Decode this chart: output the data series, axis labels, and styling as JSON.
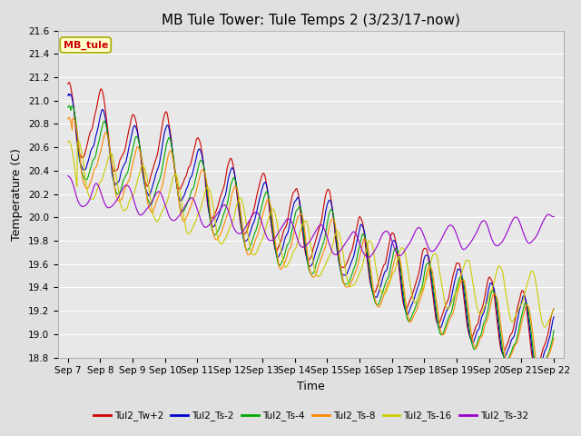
{
  "title": "MB Tule Tower: Tule Temps 2 (3/23/17-now)",
  "xlabel": "Time",
  "ylabel": "Temperature (C)",
  "ylim": [
    18.8,
    21.6
  ],
  "x_tick_labels": [
    "Sep 7",
    "Sep 8",
    "Sep 9",
    "Sep 10",
    "Sep 11",
    "Sep 12",
    "Sep 13",
    "Sep 14",
    "Sep 15",
    "Sep 16",
    "Sep 17",
    "Sep 18",
    "Sep 19",
    "Sep 20",
    "Sep 21",
    "Sep 22"
  ],
  "legend_labels": [
    "Tul2_Tw+2",
    "Tul2_Ts-2",
    "Tul2_Ts-4",
    "Tul2_Ts-8",
    "Tul2_Ts-16",
    "Tul2_Ts-32"
  ],
  "line_colors": [
    "#cc0000",
    "#0000cc",
    "#00aa00",
    "#ff8800",
    "#cccc00",
    "#9900cc"
  ],
  "watermark_text": "MB_tule",
  "watermark_bg": "#ffffcc",
  "watermark_fg": "#cc0000",
  "watermark_border": "#aaaa00",
  "title_fontsize": 11,
  "tick_fontsize": 7.5,
  "label_fontsize": 9,
  "bg_color": "#e0e0e0",
  "plot_bg_color": "#e8e8e8",
  "grid_color": "#ffffff",
  "n_points": 2000,
  "n_days": 15.0
}
